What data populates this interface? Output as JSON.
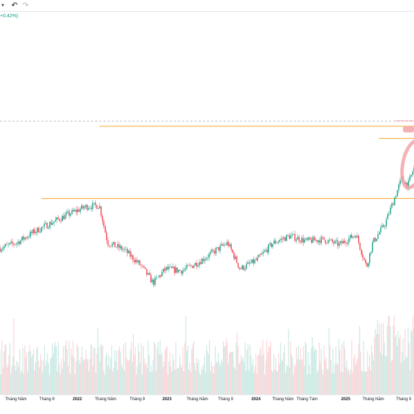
{
  "toolbar": {
    "chevron_icon": "chevron-down-icon",
    "undo_icon": "undo-icon",
    "redo_icon": "redo-icon"
  },
  "legend": {
    "change_text": "+0.42%)"
  },
  "colors": {
    "up": "#089981",
    "down": "#f23645",
    "level_line": "#f7a21b",
    "highlight": "#f2a5a8",
    "dashed_line": "#b2b5be"
  },
  "chart_data": {
    "type": "candlestick",
    "title": "",
    "xlabel": "",
    "ylabel": "",
    "x_ticks": [
      {
        "label": "Tháng Năm",
        "bold": false
      },
      {
        "label": "Tháng 9",
        "bold": false
      },
      {
        "label": "2022",
        "bold": true
      },
      {
        "label": "Tháng Năm",
        "bold": false
      },
      {
        "label": "Tháng 9",
        "bold": false
      },
      {
        "label": "2023",
        "bold": true
      },
      {
        "label": "Tháng Năm",
        "bold": false
      },
      {
        "label": "Tháng 9",
        "bold": false
      },
      {
        "label": "2024",
        "bold": true
      },
      {
        "label": "Tháng Năm",
        "bold": false
      },
      {
        "label": "Tháng Tám",
        "bold": false
      },
      {
        "label": "2025",
        "bold": true
      },
      {
        "label": "Tháng Năm",
        "bold": false
      },
      {
        "label": "Tháng 9",
        "bold": false
      }
    ],
    "price_path": [
      {
        "t": 0.0,
        "v": 0.3
      },
      {
        "t": 0.04,
        "v": 0.33
      },
      {
        "t": 0.08,
        "v": 0.39
      },
      {
        "t": 0.12,
        "v": 0.44
      },
      {
        "t": 0.17,
        "v": 0.5
      },
      {
        "t": 0.21,
        "v": 0.54
      },
      {
        "t": 0.24,
        "v": 0.545
      },
      {
        "t": 0.26,
        "v": 0.33
      },
      {
        "t": 0.3,
        "v": 0.29
      },
      {
        "t": 0.34,
        "v": 0.2
      },
      {
        "t": 0.37,
        "v": 0.1
      },
      {
        "t": 0.4,
        "v": 0.18
      },
      {
        "t": 0.44,
        "v": 0.17
      },
      {
        "t": 0.48,
        "v": 0.22
      },
      {
        "t": 0.53,
        "v": 0.3
      },
      {
        "t": 0.55,
        "v": 0.33
      },
      {
        "t": 0.58,
        "v": 0.18
      },
      {
        "t": 0.62,
        "v": 0.23
      },
      {
        "t": 0.66,
        "v": 0.33
      },
      {
        "t": 0.7,
        "v": 0.37
      },
      {
        "t": 0.74,
        "v": 0.34
      },
      {
        "t": 0.78,
        "v": 0.35
      },
      {
        "t": 0.82,
        "v": 0.32
      },
      {
        "t": 0.86,
        "v": 0.38
      },
      {
        "t": 0.885,
        "v": 0.19
      },
      {
        "t": 0.9,
        "v": 0.33
      },
      {
        "t": 0.93,
        "v": 0.44
      },
      {
        "t": 0.955,
        "v": 0.6
      },
      {
        "t": 0.97,
        "v": 0.7
      },
      {
        "t": 0.985,
        "v": 0.66
      },
      {
        "t": 1.0,
        "v": 0.76
      }
    ],
    "levels": [
      {
        "name": "level-line-top",
        "v": 1.0,
        "t_start": 0.24
      },
      {
        "name": "level-line-mid",
        "v": 0.93,
        "t_start": 0.915
      },
      {
        "name": "level-line-low",
        "v": 0.585,
        "t_start": 0.1
      }
    ],
    "dashed_level": 1.03,
    "volume_seed": 7
  }
}
